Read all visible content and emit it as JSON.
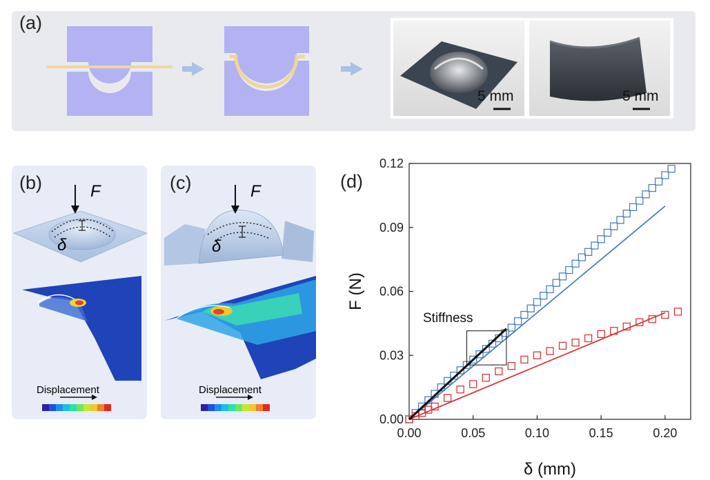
{
  "panels": {
    "a": {
      "letter": "(a)"
    },
    "b": {
      "letter": "(b)",
      "force_label": "F",
      "delta_label": "δ",
      "legend_label": "Displacement"
    },
    "c": {
      "letter": "(c)",
      "force_label": "F",
      "delta_label": "δ",
      "legend_label": "Displacement"
    },
    "d": {
      "letter": "(d)"
    }
  },
  "photos": {
    "left_scale": "5 mm",
    "right_scale": "5 mm"
  },
  "colors": {
    "die": "#b3b2f2",
    "sheet": "#efd69a",
    "arrow": "#a9c2e3",
    "blue_series": "#4a7fc0",
    "red_series": "#d8373b",
    "stiffness_line": "#111111"
  },
  "chart_data": {
    "type": "scatter",
    "xlabel": "δ (mm)",
    "ylabel": "F (N)",
    "xlim": [
      0,
      0.22
    ],
    "ylim": [
      0,
      0.12
    ],
    "xticks": [
      "0.00",
      "0.05",
      "0.10",
      "0.15",
      "0.20"
    ],
    "yticks": [
      "0.00",
      "0.03",
      "0.06",
      "0.09",
      "0.12"
    ],
    "annotation": "Stiffness",
    "series": [
      {
        "kind": "points",
        "color": "#4a7fc0",
        "x": [
          0.0,
          0.005,
          0.01,
          0.015,
          0.02,
          0.025,
          0.03,
          0.035,
          0.04,
          0.045,
          0.05,
          0.055,
          0.06,
          0.065,
          0.07,
          0.075,
          0.08,
          0.085,
          0.09,
          0.095,
          0.1,
          0.105,
          0.11,
          0.115,
          0.12,
          0.125,
          0.13,
          0.135,
          0.14,
          0.145,
          0.15,
          0.155,
          0.16,
          0.165,
          0.17,
          0.175,
          0.18,
          0.185,
          0.19,
          0.195,
          0.2,
          0.205
        ],
        "y": [
          0.0,
          0.003,
          0.006,
          0.009,
          0.012,
          0.015,
          0.018,
          0.0205,
          0.023,
          0.0255,
          0.028,
          0.0305,
          0.033,
          0.0355,
          0.038,
          0.0405,
          0.043,
          0.046,
          0.049,
          0.052,
          0.055,
          0.058,
          0.061,
          0.064,
          0.067,
          0.07,
          0.073,
          0.076,
          0.0785,
          0.0815,
          0.0845,
          0.0875,
          0.0905,
          0.0935,
          0.0965,
          0.0995,
          0.1025,
          0.1055,
          0.1085,
          0.1115,
          0.1145,
          0.1175
        ]
      },
      {
        "kind": "line",
        "color": "#4a7fc0",
        "x": [
          0,
          0.2
        ],
        "y": [
          0,
          0.1
        ]
      },
      {
        "kind": "points",
        "color": "#d8373b",
        "x": [
          0.0,
          0.005,
          0.01,
          0.015,
          0.02,
          0.03,
          0.04,
          0.05,
          0.06,
          0.07,
          0.08,
          0.09,
          0.1,
          0.11,
          0.12,
          0.13,
          0.14,
          0.15,
          0.16,
          0.17,
          0.18,
          0.19,
          0.2,
          0.21
        ],
        "y": [
          0.0,
          0.0015,
          0.003,
          0.0045,
          0.006,
          0.01,
          0.014,
          0.0165,
          0.0195,
          0.0225,
          0.025,
          0.028,
          0.03,
          0.032,
          0.0345,
          0.036,
          0.038,
          0.04,
          0.0415,
          0.0435,
          0.0455,
          0.047,
          0.049,
          0.0505
        ]
      },
      {
        "kind": "line",
        "color": "#d8373b",
        "x": [
          0,
          0.2
        ],
        "y": [
          0,
          0.05
        ]
      },
      {
        "kind": "line",
        "color": "#111111",
        "x": [
          0,
          0.076
        ],
        "y": [
          0,
          0.0425
        ]
      }
    ]
  }
}
